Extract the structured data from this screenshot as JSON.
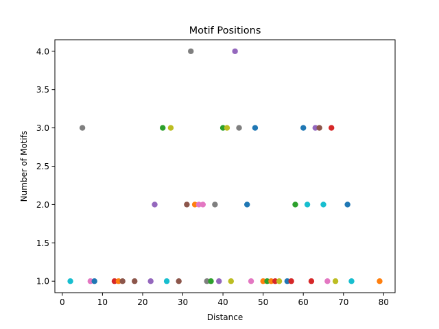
{
  "chart_data": {
    "type": "scatter",
    "title": "Motif Positions",
    "xlabel": "Distance",
    "ylabel": "Number of Motifs",
    "xlim": [
      -1.85,
      82.85
    ],
    "ylim": [
      0.85,
      4.15
    ],
    "xticks": [
      0,
      10,
      20,
      30,
      40,
      50,
      60,
      70,
      80
    ],
    "xtick_labels": [
      "0",
      "10",
      "20",
      "30",
      "40",
      "50",
      "60",
      "70",
      "80"
    ],
    "yticks": [
      1.0,
      1.5,
      2.0,
      2.5,
      3.0,
      3.5,
      4.0
    ],
    "ytick_labels": [
      "1.0",
      "1.5",
      "2.0",
      "2.5",
      "3.0",
      "3.5",
      "4.0"
    ],
    "grid": false,
    "points": [
      {
        "x": 2,
        "y": 1,
        "color": "#17becf"
      },
      {
        "x": 7,
        "y": 1,
        "color": "#e377c2"
      },
      {
        "x": 8,
        "y": 1,
        "color": "#1f77b4"
      },
      {
        "x": 13,
        "y": 1,
        "color": "#d62728"
      },
      {
        "x": 14,
        "y": 1,
        "color": "#ff7f0e"
      },
      {
        "x": 15,
        "y": 1,
        "color": "#8c564b"
      },
      {
        "x": 18,
        "y": 1,
        "color": "#8c564b"
      },
      {
        "x": 22,
        "y": 1,
        "color": "#9467bd"
      },
      {
        "x": 26,
        "y": 1,
        "color": "#17becf"
      },
      {
        "x": 29,
        "y": 1,
        "color": "#8c564b"
      },
      {
        "x": 36,
        "y": 1,
        "color": "#7f7f7f"
      },
      {
        "x": 37,
        "y": 1,
        "color": "#2ca02c"
      },
      {
        "x": 39,
        "y": 1,
        "color": "#9467bd"
      },
      {
        "x": 42,
        "y": 1,
        "color": "#bcbd22"
      },
      {
        "x": 47,
        "y": 1,
        "color": "#e377c2"
      },
      {
        "x": 50,
        "y": 1,
        "color": "#ff7f0e"
      },
      {
        "x": 51,
        "y": 1,
        "color": "#2ca02c"
      },
      {
        "x": 52,
        "y": 1,
        "color": "#ff7f0e"
      },
      {
        "x": 53,
        "y": 1,
        "color": "#d62728"
      },
      {
        "x": 54,
        "y": 1,
        "color": "#bcbd22"
      },
      {
        "x": 56,
        "y": 1,
        "color": "#1f77b4"
      },
      {
        "x": 57,
        "y": 1,
        "color": "#d62728"
      },
      {
        "x": 62,
        "y": 1,
        "color": "#d62728"
      },
      {
        "x": 66,
        "y": 1,
        "color": "#e377c2"
      },
      {
        "x": 68,
        "y": 1,
        "color": "#bcbd22"
      },
      {
        "x": 72,
        "y": 1,
        "color": "#17becf"
      },
      {
        "x": 79,
        "y": 1,
        "color": "#ff7f0e"
      },
      {
        "x": 23,
        "y": 2,
        "color": "#9467bd"
      },
      {
        "x": 31,
        "y": 2,
        "color": "#8c564b"
      },
      {
        "x": 33,
        "y": 2,
        "color": "#ff7f0e"
      },
      {
        "x": 34,
        "y": 2,
        "color": "#e377c2"
      },
      {
        "x": 35,
        "y": 2,
        "color": "#e377c2"
      },
      {
        "x": 38,
        "y": 2,
        "color": "#7f7f7f"
      },
      {
        "x": 46,
        "y": 2,
        "color": "#1f77b4"
      },
      {
        "x": 58,
        "y": 2,
        "color": "#2ca02c"
      },
      {
        "x": 61,
        "y": 2,
        "color": "#17becf"
      },
      {
        "x": 65,
        "y": 2,
        "color": "#17becf"
      },
      {
        "x": 71,
        "y": 2,
        "color": "#1f77b4"
      },
      {
        "x": 5,
        "y": 3,
        "color": "#7f7f7f"
      },
      {
        "x": 25,
        "y": 3,
        "color": "#2ca02c"
      },
      {
        "x": 27,
        "y": 3,
        "color": "#bcbd22"
      },
      {
        "x": 40,
        "y": 3,
        "color": "#2ca02c"
      },
      {
        "x": 41,
        "y": 3,
        "color": "#bcbd22"
      },
      {
        "x": 44,
        "y": 3,
        "color": "#7f7f7f"
      },
      {
        "x": 48,
        "y": 3,
        "color": "#1f77b4"
      },
      {
        "x": 60,
        "y": 3,
        "color": "#1f77b4"
      },
      {
        "x": 63,
        "y": 3,
        "color": "#9467bd"
      },
      {
        "x": 64,
        "y": 3,
        "color": "#8c564b"
      },
      {
        "x": 67,
        "y": 3,
        "color": "#d62728"
      },
      {
        "x": 32,
        "y": 4,
        "color": "#7f7f7f"
      },
      {
        "x": 43,
        "y": 4,
        "color": "#9467bd"
      }
    ]
  }
}
